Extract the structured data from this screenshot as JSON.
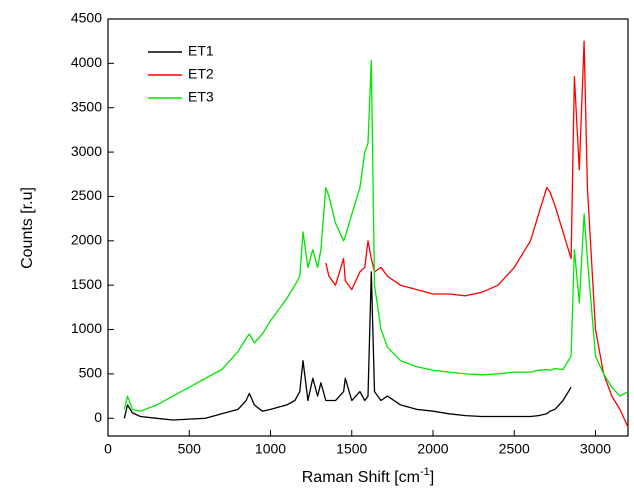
{
  "chart_data": {
    "type": "line",
    "x_label": [
      "Raman Shift [cm",
      "-1",
      "]"
    ],
    "y_label": "Counts [r.u]",
    "x": [
      100,
      120,
      150,
      200,
      300,
      400,
      500,
      600,
      700,
      800,
      850,
      870,
      900,
      950,
      1000,
      1100,
      1150,
      1180,
      1200,
      1230,
      1260,
      1290,
      1310,
      1340,
      1360,
      1400,
      1450,
      1460,
      1500,
      1550,
      1580,
      1600,
      1620,
      1640,
      1680,
      1720,
      1800,
      1900,
      2000,
      2100,
      2200,
      2300,
      2400,
      2500,
      2600,
      2650,
      2700,
      2720,
      2750,
      2800,
      2850,
      2870,
      2900,
      2930,
      2950,
      3000,
      3050,
      3100,
      3150,
      3200
    ],
    "series": [
      {
        "name": "ET1",
        "color": "#000000",
        "values": [
          0,
          150,
          60,
          20,
          0,
          -20,
          -10,
          0,
          50,
          100,
          200,
          280,
          150,
          80,
          100,
          150,
          200,
          300,
          650,
          200,
          450,
          250,
          400,
          200,
          200,
          200,
          300,
          450,
          200,
          300,
          200,
          250,
          1650,
          300,
          200,
          250,
          150,
          100,
          80,
          50,
          30,
          20,
          20,
          20,
          20,
          30,
          50,
          80,
          100,
          200,
          350,
          null,
          null,
          null,
          null,
          null,
          null,
          null,
          null,
          null
        ]
      },
      {
        "name": "ET2",
        "color": "#ff0000",
        "values": [
          null,
          null,
          null,
          null,
          null,
          null,
          null,
          null,
          null,
          null,
          null,
          null,
          null,
          null,
          null,
          null,
          null,
          null,
          null,
          null,
          null,
          null,
          null,
          1750,
          1600,
          1500,
          1800,
          1550,
          1450,
          1650,
          1700,
          2000,
          1800,
          1650,
          1700,
          1600,
          1500,
          1450,
          1400,
          1400,
          1380,
          1420,
          1500,
          1700,
          2000,
          2300,
          2600,
          2550,
          2400,
          2100,
          1800,
          3850,
          2800,
          4250,
          2600,
          1000,
          500,
          250,
          100,
          -100
        ]
      },
      {
        "name": "ET3",
        "color": "#00e600",
        "values": [
          100,
          250,
          100,
          80,
          150,
          250,
          350,
          450,
          550,
          750,
          900,
          950,
          850,
          950,
          1100,
          1350,
          1500,
          1600,
          2100,
          1700,
          1900,
          1700,
          1900,
          2600,
          2500,
          2200,
          2000,
          2050,
          2300,
          2600,
          3000,
          3100,
          4030,
          1500,
          1000,
          800,
          650,
          580,
          540,
          520,
          500,
          490,
          500,
          520,
          520,
          540,
          550,
          540,
          560,
          550,
          700,
          1900,
          1300,
          2300,
          1800,
          700,
          500,
          350,
          250,
          300
        ]
      }
    ],
    "xlim": [
      0,
      3200
    ],
    "ylim": [
      -200,
      4500
    ],
    "xticks": [
      0,
      500,
      1000,
      1500,
      2000,
      2500,
      3000
    ],
    "yticks": [
      0,
      500,
      1000,
      1500,
      2000,
      2500,
      3000,
      3500,
      4000,
      4500
    ],
    "legend": "upper left"
  }
}
